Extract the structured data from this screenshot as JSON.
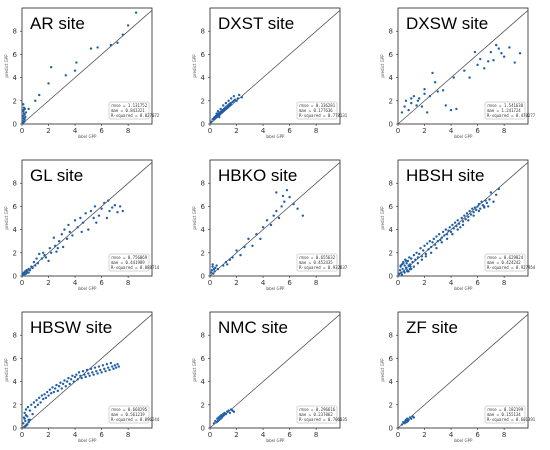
{
  "figure": {
    "xlabel": "label GPP",
    "ylabel": "predict GPP",
    "ticks": [
      "0",
      "2",
      "4",
      "6",
      "8"
    ],
    "point_color": "#1f5fa8",
    "line_color": "#555555"
  },
  "chart_data": [
    {
      "type": "scatter",
      "title": "AR site",
      "xlim": [
        0,
        9.8
      ],
      "ylim": [
        0,
        10
      ],
      "xlabel": "label GPP",
      "ylabel": "predict GPP",
      "stats": [
        "rmse = 1.131752",
        "mae = 0.843321",
        "R-squared = 0.827072"
      ],
      "x": [
        0.05,
        0.08,
        0.1,
        0.12,
        0.15,
        0.18,
        0.2,
        0.22,
        0.25,
        0.1,
        0.15,
        0.2,
        0.3,
        0.12,
        0.08,
        0.5,
        1.0,
        1.3,
        2.0,
        2.2,
        3.3,
        4.0,
        4.1,
        5.2,
        5.7,
        6.7,
        7.2,
        7.6,
        8.0,
        8.6
      ],
      "y": [
        0.3,
        0.7,
        1.1,
        0.5,
        1.4,
        0.2,
        0.8,
        1.3,
        0.6,
        1.7,
        0.9,
        0.4,
        1.0,
        1.2,
        0.1,
        1.3,
        2.0,
        2.5,
        3.5,
        4.9,
        4.2,
        4.6,
        5.3,
        6.5,
        6.6,
        6.8,
        7.0,
        7.7,
        8.5,
        9.6
      ]
    },
    {
      "type": "scatter",
      "title": "DXST site",
      "xlim": [
        0,
        9.8
      ],
      "ylim": [
        0,
        10
      ],
      "xlabel": "label GPP",
      "ylabel": "predict GPP",
      "stats": [
        "rmse = 0.336281",
        "mae = 0.177636",
        "R-squared = 0.778131"
      ],
      "x": [
        0.1,
        0.2,
        0.3,
        0.35,
        0.4,
        0.45,
        0.5,
        0.55,
        0.6,
        0.65,
        0.7,
        0.75,
        0.8,
        0.85,
        0.9,
        0.95,
        1.0,
        1.05,
        1.1,
        1.15,
        1.2,
        1.25,
        1.3,
        1.35,
        1.4,
        1.45,
        1.5,
        1.55,
        1.6,
        1.7,
        1.8,
        1.9,
        2.0,
        2.1,
        2.2,
        2.4,
        0.5,
        0.6,
        0.8,
        1.0,
        1.2,
        1.4,
        1.6,
        1.8,
        0.3,
        0.7
      ],
      "y": [
        0.2,
        0.4,
        0.5,
        0.6,
        0.5,
        0.7,
        0.6,
        0.8,
        0.7,
        0.9,
        0.8,
        1.0,
        0.9,
        1.1,
        1.0,
        1.2,
        1.1,
        1.3,
        1.2,
        1.4,
        1.3,
        1.5,
        1.4,
        1.6,
        1.5,
        1.7,
        1.6,
        1.8,
        1.7,
        1.9,
        2.0,
        2.1,
        2.0,
        2.2,
        2.5,
        2.3,
        0.9,
        1.1,
        1.3,
        1.6,
        1.8,
        2.0,
        2.2,
        2.4,
        0.4,
        0.6
      ]
    },
    {
      "type": "scatter",
      "title": "DXSW site",
      "xlim": [
        0,
        9.8
      ],
      "ylim": [
        0,
        10
      ],
      "xlabel": "label GPP",
      "ylabel": "predict GPP",
      "stats": [
        "rmse = 1.541638",
        "mae = 1.241724",
        "R-squared = 0.478277"
      ],
      "x": [
        0.3,
        0.5,
        0.6,
        0.8,
        1.0,
        1.0,
        1.2,
        1.4,
        1.5,
        1.6,
        1.8,
        2.0,
        2.0,
        2.2,
        2.4,
        2.6,
        2.8,
        3.0,
        3.4,
        3.6,
        4.0,
        4.2,
        4.4,
        5.0,
        5.4,
        5.8,
        6.0,
        6.2,
        6.5,
        6.8,
        7.0,
        7.2,
        7.4,
        7.6,
        7.8,
        8.0,
        8.4,
        8.8,
        9.2
      ],
      "y": [
        1.0,
        1.5,
        2.0,
        1.2,
        2.2,
        1.8,
        2.4,
        1.6,
        2.0,
        2.2,
        1.5,
        2.6,
        3.0,
        1.0,
        2.4,
        4.4,
        3.6,
        2.8,
        2.9,
        1.6,
        1.2,
        4.0,
        1.3,
        4.6,
        4.0,
        6.2,
        5.1,
        5.6,
        4.8,
        5.4,
        6.2,
        5.5,
        6.8,
        6.5,
        6.1,
        5.8,
        6.6,
        5.3,
        6.1
      ]
    },
    {
      "type": "scatter",
      "title": "GL site",
      "xlim": [
        0,
        9.8
      ],
      "ylim": [
        0,
        10
      ],
      "xlabel": "label GPP",
      "ylabel": "predict GPP",
      "stats": [
        "rmse = 0.756069",
        "mae = 0.441989",
        "R-squared = 0.888714"
      ],
      "x": [
        0.05,
        0.1,
        0.15,
        0.2,
        0.25,
        0.3,
        0.35,
        0.4,
        0.5,
        0.6,
        0.7,
        0.8,
        0.9,
        1.0,
        1.2,
        1.3,
        1.5,
        1.6,
        1.8,
        2.0,
        2.1,
        2.2,
        2.4,
        2.5,
        2.6,
        2.8,
        3.0,
        3.1,
        3.2,
        3.4,
        3.5,
        3.6,
        3.8,
        4.0,
        4.2,
        4.4,
        4.5,
        4.6,
        4.8,
        5.0,
        5.2,
        5.4,
        5.5,
        5.6,
        5.8,
        6.0,
        6.2,
        6.4,
        6.5,
        6.6,
        6.8,
        7.0,
        7.2,
        7.4,
        7.6,
        0.3,
        0.5,
        1.1,
        1.7,
        2.7
      ],
      "y": [
        0.1,
        0.2,
        0.3,
        0.15,
        0.4,
        0.2,
        0.5,
        0.3,
        0.6,
        0.5,
        0.8,
        0.7,
        1.2,
        0.9,
        1.1,
        1.9,
        1.5,
        2.0,
        1.6,
        1.3,
        2.4,
        2.0,
        3.3,
        2.6,
        2.1,
        3.0,
        3.6,
        2.5,
        4.0,
        3.2,
        4.4,
        3.8,
        3.5,
        4.8,
        4.2,
        5.0,
        3.8,
        4.6,
        5.4,
        4.0,
        5.6,
        5.0,
        6.0,
        4.6,
        5.2,
        5.8,
        6.3,
        5.0,
        6.5,
        5.6,
        5.9,
        6.1,
        5.5,
        6.0,
        5.6,
        0.4,
        0.3,
        1.5,
        1.8,
        2.4
      ]
    },
    {
      "type": "scatter",
      "title": "HBKO site",
      "xlim": [
        0,
        9.8
      ],
      "ylim": [
        0,
        10
      ],
      "xlabel": "label GPP",
      "ylabel": "predict GPP",
      "stats": [
        "rmse = 0.655632",
        "mae = 0.452435",
        "R-squared = 0.932837"
      ],
      "x": [
        0.1,
        0.15,
        0.2,
        0.25,
        0.3,
        0.2,
        0.35,
        0.4,
        0.5,
        0.6,
        1.0,
        1.2,
        1.3,
        1.5,
        1.7,
        2.0,
        2.3,
        2.6,
        2.9,
        3.2,
        3.5,
        3.8,
        4.0,
        4.3,
        4.6,
        4.8,
        5.0,
        5.2,
        5.4,
        5.6,
        5.8,
        6.0,
        6.3,
        6.6,
        7.0,
        5.5,
        5.0
      ],
      "y": [
        0.3,
        0.5,
        0.8,
        0.2,
        0.6,
        1.0,
        0.4,
        0.7,
        0.9,
        0.6,
        0.9,
        1.2,
        1.0,
        1.4,
        1.6,
        2.2,
        1.8,
        2.5,
        3.2,
        2.6,
        3.6,
        3.2,
        4.2,
        4.8,
        4.4,
        5.2,
        5.6,
        5.0,
        6.0,
        6.4,
        7.4,
        6.8,
        6.2,
        5.8,
        5.2,
        6.9,
        7.2
      ]
    },
    {
      "type": "scatter",
      "title": "HBSH site",
      "xlim": [
        0,
        9.8
      ],
      "ylim": [
        0,
        10
      ],
      "xlabel": "label GPP",
      "ylabel": "predict GPP",
      "stats": [
        "rmse = 0.629824",
        "mae = 0.424242",
        "R-squared = 0.927954"
      ],
      "x": [
        0.1,
        0.15,
        0.2,
        0.25,
        0.3,
        0.35,
        0.4,
        0.45,
        0.5,
        0.55,
        0.6,
        0.65,
        0.7,
        0.75,
        0.8,
        0.85,
        0.9,
        0.95,
        1.0,
        1.1,
        1.2,
        1.3,
        1.4,
        1.5,
        1.6,
        1.7,
        1.8,
        1.9,
        2.0,
        2.1,
        2.2,
        2.3,
        2.4,
        2.5,
        2.6,
        2.7,
        2.8,
        2.9,
        3.0,
        3.1,
        3.2,
        3.3,
        3.4,
        3.5,
        3.6,
        3.7,
        3.8,
        3.9,
        4.0,
        4.1,
        4.2,
        4.3,
        4.4,
        4.5,
        4.6,
        4.7,
        4.8,
        4.9,
        5.0,
        5.1,
        5.2,
        5.3,
        5.4,
        5.5,
        5.6,
        5.7,
        5.8,
        5.9,
        6.0,
        6.1,
        6.2,
        6.3,
        6.4,
        6.5,
        6.6,
        6.7,
        6.8,
        6.9,
        7.0,
        7.2,
        7.4,
        7.6,
        0.3,
        0.5,
        0.7,
        0.9,
        1.2,
        1.5,
        1.8,
        2.1,
        2.5,
        2.9,
        3.3,
        3.7,
        4.1,
        4.5,
        4.9,
        5.3,
        5.7,
        6.1,
        6.5,
        0.2,
        0.4,
        0.6,
        0.8,
        1.0
      ],
      "y": [
        0.2,
        0.5,
        0.8,
        0.3,
        1.0,
        0.6,
        1.2,
        0.4,
        0.9,
        1.4,
        0.7,
        1.1,
        0.5,
        1.3,
        0.9,
        1.6,
        1.0,
        0.8,
        1.5,
        1.2,
        1.8,
        1.4,
        2.0,
        1.6,
        1.9,
        2.4,
        1.7,
        2.2,
        2.6,
        1.9,
        2.8,
        2.3,
        3.0,
        2.5,
        2.9,
        3.2,
        2.7,
        3.4,
        3.0,
        3.6,
        3.1,
        3.3,
        3.8,
        3.5,
        4.0,
        3.6,
        3.9,
        4.2,
        3.8,
        4.4,
        4.1,
        4.6,
        4.3,
        4.8,
        4.5,
        4.2,
        5.0,
        4.7,
        5.2,
        4.9,
        5.4,
        5.1,
        5.6,
        5.3,
        5.8,
        5.5,
        5.9,
        5.7,
        6.0,
        6.2,
        5.8,
        6.4,
        6.1,
        5.9,
        6.5,
        6.3,
        6.0,
        6.6,
        7.2,
        6.4,
        7.0,
        7.5,
        0.1,
        0.3,
        0.4,
        0.6,
        0.8,
        1.1,
        1.4,
        1.7,
        2.0,
        2.4,
        2.9,
        3.2,
        3.6,
        4.0,
        4.4,
        4.8,
        5.2,
        5.6,
        6.0,
        0.9,
        1.1,
        1.3,
        0.4,
        0.6
      ]
    },
    {
      "type": "scatter",
      "title": "HBSW site",
      "xlim": [
        0,
        9.8
      ],
      "ylim": [
        0,
        10
      ],
      "xlabel": "label GPP",
      "ylabel": "predict GPP",
      "stats": [
        "rmse = 0.668295",
        "mae = 0.561219",
        "R-squared = 0.896244"
      ],
      "x": [
        0.1,
        0.15,
        0.2,
        0.25,
        0.3,
        0.35,
        0.4,
        0.45,
        0.5,
        0.6,
        0.7,
        0.8,
        0.9,
        1.0,
        1.1,
        1.2,
        1.3,
        1.4,
        1.5,
        1.6,
        1.7,
        1.8,
        1.9,
        2.0,
        2.1,
        2.2,
        2.3,
        2.4,
        2.5,
        2.6,
        2.7,
        2.8,
        2.9,
        3.0,
        3.1,
        3.2,
        3.3,
        3.4,
        3.5,
        3.6,
        3.7,
        3.8,
        3.9,
        4.0,
        4.1,
        4.2,
        4.3,
        4.4,
        4.5,
        4.6,
        4.7,
        4.8,
        4.9,
        5.0,
        5.1,
        5.2,
        5.3,
        5.4,
        5.5,
        5.6,
        5.7,
        5.8,
        5.9,
        6.0,
        6.1,
        6.2,
        6.3,
        6.4,
        6.5,
        6.6,
        6.7,
        6.8,
        6.9,
        7.0,
        7.1,
        7.2,
        7.3,
        0.2,
        0.3,
        0.4,
        0.5,
        0.6,
        0.2,
        0.3
      ],
      "y": [
        0.4,
        0.9,
        1.3,
        0.6,
        1.6,
        0.3,
        1.0,
        1.8,
        0.7,
        1.5,
        2.0,
        1.2,
        2.2,
        1.8,
        2.4,
        2.0,
        2.6,
        2.2,
        2.8,
        2.5,
        2.9,
        2.6,
        3.1,
        2.8,
        3.3,
        3.0,
        3.5,
        3.1,
        3.4,
        3.7,
        3.2,
        3.6,
        3.9,
        3.4,
        3.8,
        4.1,
        3.6,
        4.0,
        4.3,
        3.8,
        4.2,
        4.5,
        4.0,
        4.4,
        4.6,
        4.2,
        4.8,
        4.5,
        4.3,
        4.9,
        4.6,
        4.4,
        5.0,
        4.7,
        4.5,
        5.1,
        4.8,
        4.6,
        5.2,
        4.9,
        4.7,
        5.3,
        5.0,
        4.8,
        5.4,
        5.1,
        4.9,
        5.5,
        5.2,
        5.0,
        5.6,
        5.3,
        5.1,
        5.4,
        5.2,
        5.5,
        5.3,
        0.1,
        0.2,
        0.3,
        0.5,
        0.7,
        0.8,
        1.1
      ]
    },
    {
      "type": "scatter",
      "title": "NMC site",
      "xlim": [
        0,
        9.8
      ],
      "ylim": [
        0,
        10
      ],
      "xlabel": "label GPP",
      "ylabel": "predict GPP",
      "stats": [
        "rmse = 0.296616",
        "mae = 0.237062",
        "R-squared = 0.706035"
      ],
      "x": [
        0.3,
        0.4,
        0.5,
        0.55,
        0.6,
        0.65,
        0.7,
        0.75,
        0.8,
        0.85,
        0.9,
        0.95,
        1.0,
        1.05,
        1.1,
        1.2,
        1.3,
        1.4,
        1.5,
        1.6,
        1.7,
        1.8
      ],
      "y": [
        0.4,
        0.6,
        0.5,
        0.8,
        0.6,
        0.9,
        0.7,
        1.0,
        0.8,
        1.1,
        0.9,
        1.0,
        1.2,
        1.1,
        1.3,
        1.2,
        1.4,
        1.5,
        1.3,
        1.6,
        1.5,
        1.4
      ]
    },
    {
      "type": "scatter",
      "title": "ZF site",
      "xlim": [
        0,
        9.8
      ],
      "ylim": [
        0,
        10
      ],
      "xlabel": "label GPP",
      "ylabel": "predict GPP",
      "stats": [
        "rmse = 0.182199",
        "mae = 0.155134",
        "R-squared = 0.601391"
      ],
      "x": [
        0.3,
        0.4,
        0.5,
        0.55,
        0.6,
        0.65,
        0.7,
        0.75,
        0.8,
        0.9,
        1.0,
        1.1,
        1.2
      ],
      "y": [
        0.3,
        0.5,
        0.4,
        0.6,
        0.7,
        0.5,
        0.8,
        0.6,
        0.7,
        0.9,
        0.8,
        1.0,
        0.9
      ]
    }
  ]
}
